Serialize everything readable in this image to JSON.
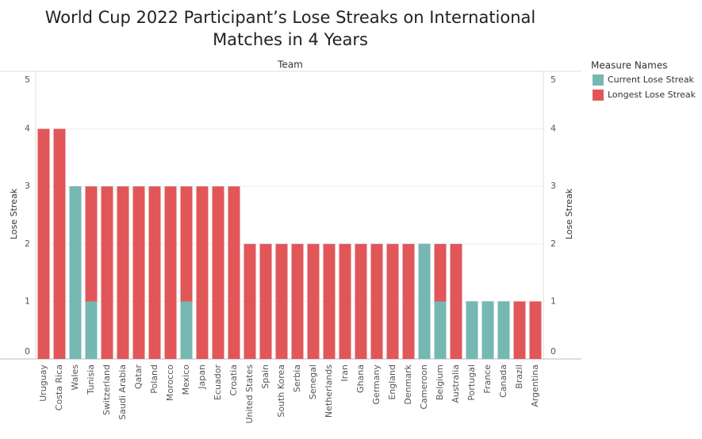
{
  "chart_data": {
    "type": "bar",
    "title": "World Cup 2022 Participant’s Lose Streaks on International Matches in 4 Years",
    "header": "Team",
    "y_label": "Lose Streak",
    "y2_label": "Lose Streak",
    "legend_title": "Measure Names",
    "categories": [
      "Uruguay",
      "Costa Rica",
      "Wales",
      "Tunisia",
      "Switzerland",
      "Saudi Arabia",
      "Qatar",
      "Poland",
      "Morocco",
      "Mexico",
      "Japan",
      "Ecuador",
      "Croatia",
      "United States",
      "Spain",
      "South Korea",
      "Serbia",
      "Senegal",
      "Netherlands",
      "Iran",
      "Ghana",
      "Germany",
      "England",
      "Denmark",
      "Cameroon",
      "Belgium",
      "Australia",
      "Portugal",
      "France",
      "Canada",
      "Brazil",
      "Argentina"
    ],
    "series": [
      {
        "name": "Longest Lose Streak",
        "color": "#e15759",
        "values": [
          4,
          4,
          3,
          3,
          3,
          3,
          3,
          3,
          3,
          3,
          3,
          3,
          3,
          2,
          2,
          2,
          2,
          2,
          2,
          2,
          2,
          2,
          2,
          2,
          2,
          2,
          2,
          1,
          1,
          1,
          1,
          1
        ]
      },
      {
        "name": "Current Lose Streak",
        "color": "#76b7b2",
        "axis": "y2",
        "values": [
          0,
          0,
          3,
          1,
          0,
          0,
          0,
          0,
          0,
          1,
          0,
          0,
          0,
          0,
          0,
          0,
          0,
          0,
          0,
          0,
          0,
          0,
          0,
          0,
          2,
          1,
          0,
          1,
          1,
          1,
          0,
          0
        ]
      }
    ],
    "ylim": [
      0,
      5
    ],
    "yticks": [
      0,
      1,
      2,
      3,
      4,
      5
    ],
    "y2lim": [
      0,
      5
    ],
    "y2ticks": [
      0,
      1,
      2,
      3,
      4,
      5
    ],
    "grid": true,
    "legend": "right"
  }
}
